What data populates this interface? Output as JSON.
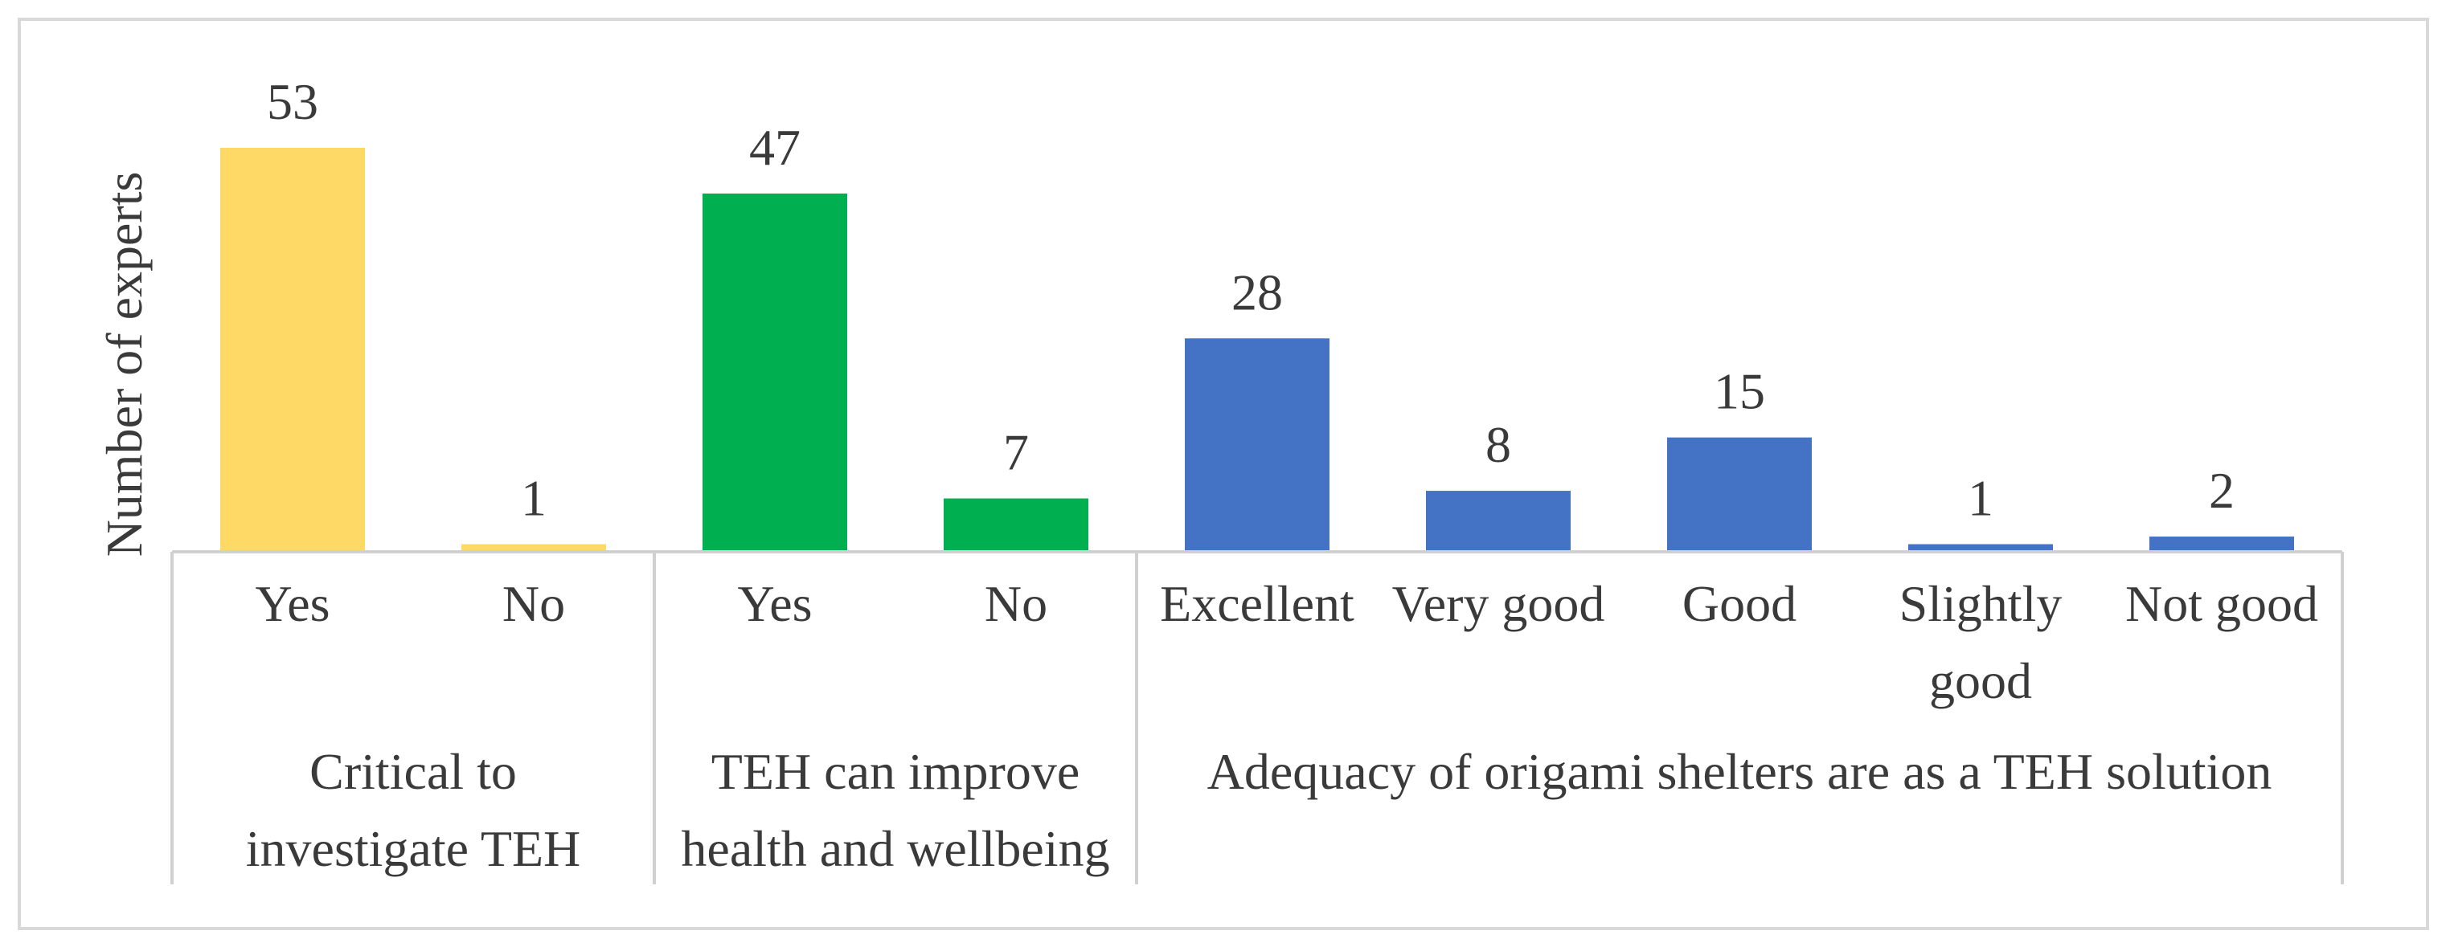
{
  "chart_data": {
    "type": "bar",
    "title": "",
    "ylabel": "Number of experts",
    "xlabel": "",
    "ylim": [
      0,
      53
    ],
    "grid": false,
    "categories": [
      "Yes",
      "No",
      "Yes",
      "No",
      "Excellent",
      "Very good",
      "Good",
      "Slightly good",
      "Not good"
    ],
    "category_lines": [
      [
        "Yes"
      ],
      [
        "No"
      ],
      [
        "Yes"
      ],
      [
        "No"
      ],
      [
        "Excellent"
      ],
      [
        "Very good"
      ],
      [
        "Good"
      ],
      [
        "Slightly",
        "good"
      ],
      [
        "Not good"
      ]
    ],
    "values": [
      53,
      1,
      47,
      7,
      28,
      8,
      15,
      1,
      2
    ],
    "bar_colors": [
      "#FFD966",
      "#FFD966",
      "#00B050",
      "#00B050",
      "#4472C4",
      "#4472C4",
      "#4472C4",
      "#4472C4",
      "#4472C4"
    ],
    "groups": [
      {
        "label_lines": [
          "Critical to",
          "investigate TEH"
        ],
        "start": 0,
        "end": 1
      },
      {
        "label_lines": [
          "TEH can improve",
          "health and wellbeing"
        ],
        "start": 2,
        "end": 3
      },
      {
        "label_lines": [
          "Adequacy of origami shelters are as a TEH solution"
        ],
        "start": 4,
        "end": 8
      }
    ]
  }
}
